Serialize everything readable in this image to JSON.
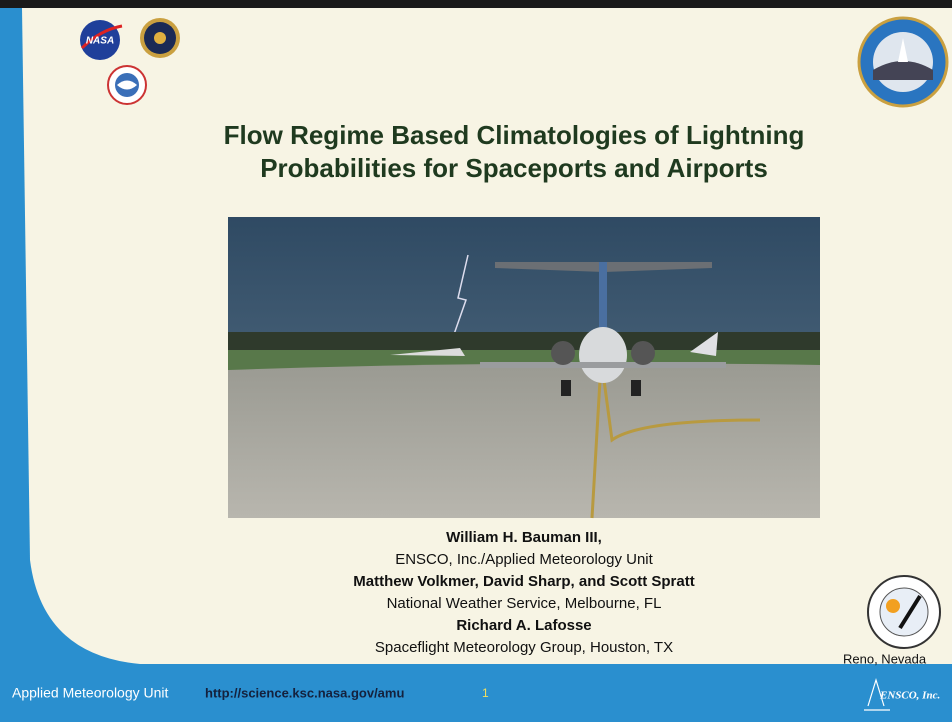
{
  "header": {
    "title_lines": [
      "Flow Regime Based Climatologies of Lightning",
      "Probabilities for Spaceports and Airports"
    ]
  },
  "logos": {
    "nasa": "NASA"
  },
  "authors": [
    {
      "name": "William H. Bauman III,",
      "affiliation": "ENSCO, Inc./Applied Meteorology Unit"
    },
    {
      "name": "Matthew Volkmer, David Sharp, and Scott Spratt",
      "affiliation": "National Weather Service, Melbourne, FL"
    },
    {
      "name": "Richard A. Lafosse",
      "affiliation": "Spaceflight Meteorology Group, Houston, TX"
    }
  ],
  "footer": {
    "unit": "Applied Meteorology Unit",
    "url": "http://science.ksc.nasa.gov/amu",
    "page": "1",
    "location": "Reno, Nevada",
    "company": "ENSCO, Inc."
  }
}
